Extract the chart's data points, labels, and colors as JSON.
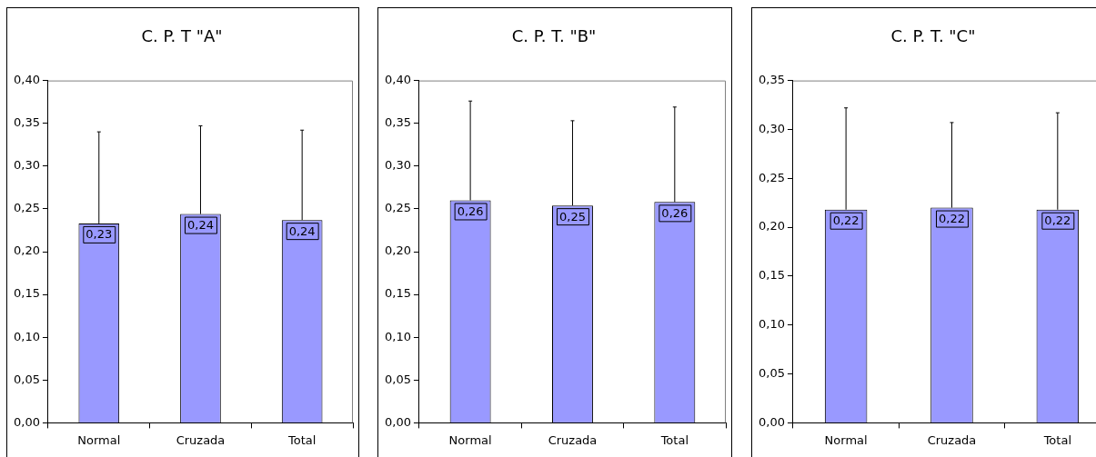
{
  "chart_data": [
    {
      "type": "bar",
      "title": "C. P. T \"A\"",
      "categories": [
        "Normal",
        "Cruzada",
        "Total"
      ],
      "values": [
        0.233,
        0.244,
        0.237
      ],
      "color": "#9999ff",
      "errors": [
        [
          0.233,
          0.34
        ],
        [
          0.244,
          0.347
        ],
        [
          0.237,
          0.342
        ]
      ],
      "value_labels": [
        "0,23",
        "0,24",
        "0,24"
      ],
      "ylim": [
        0,
        0.4
      ],
      "yticks": [
        {
          "value": 0,
          "label": "0,00"
        },
        {
          "value": 0.05,
          "label": "0,05"
        },
        {
          "value": 0.1,
          "label": "0,10"
        },
        {
          "value": 0.15,
          "label": "0,15"
        },
        {
          "value": 0.2,
          "label": "0,20"
        },
        {
          "value": 0.25,
          "label": "0,25"
        },
        {
          "value": 0.3,
          "label": "0,30"
        },
        {
          "value": 0.35,
          "label": "0,35"
        },
        {
          "value": 0.4,
          "label": "0,40"
        }
      ]
    },
    {
      "type": "bar",
      "title": "C. P. T. \"B\"",
      "categories": [
        "Normal",
        "Cruzada",
        "Total"
      ],
      "values": [
        0.26,
        0.254,
        0.258
      ],
      "color": "#9999ff",
      "errors": [
        [
          0.26,
          0.376
        ],
        [
          0.254,
          0.353
        ],
        [
          0.258,
          0.369
        ]
      ],
      "value_labels": [
        "0,26",
        "0,25",
        "0,26"
      ],
      "ylim": [
        0,
        0.4
      ],
      "yticks": [
        {
          "value": 0,
          "label": "0,00"
        },
        {
          "value": 0.05,
          "label": "0,05"
        },
        {
          "value": 0.1,
          "label": "0,10"
        },
        {
          "value": 0.15,
          "label": "0,15"
        },
        {
          "value": 0.2,
          "label": "0,20"
        },
        {
          "value": 0.25,
          "label": "0,25"
        },
        {
          "value": 0.3,
          "label": "0,30"
        },
        {
          "value": 0.35,
          "label": "0,35"
        },
        {
          "value": 0.4,
          "label": "0,40"
        }
      ]
    },
    {
      "type": "bar",
      "title": "C. P. T. \"C\"",
      "categories": [
        "Normal",
        "Cruzada",
        "Total"
      ],
      "values": [
        0.218,
        0.22,
        0.218
      ],
      "color": "#9999ff",
      "errors": [
        [
          0.218,
          0.322
        ],
        [
          0.22,
          0.307
        ],
        [
          0.218,
          0.317
        ]
      ],
      "value_labels": [
        "0,22",
        "0,22",
        "0,22"
      ],
      "ylim": [
        0,
        0.35
      ],
      "yticks": [
        {
          "value": 0,
          "label": "0,00"
        },
        {
          "value": 0.05,
          "label": "0,05"
        },
        {
          "value": 0.1,
          "label": "0,10"
        },
        {
          "value": 0.15,
          "label": "0,15"
        },
        {
          "value": 0.2,
          "label": "0,20"
        },
        {
          "value": 0.25,
          "label": "0,25"
        },
        {
          "value": 0.3,
          "label": "0,30"
        },
        {
          "value": 0.35,
          "label": "0,35"
        }
      ]
    }
  ]
}
